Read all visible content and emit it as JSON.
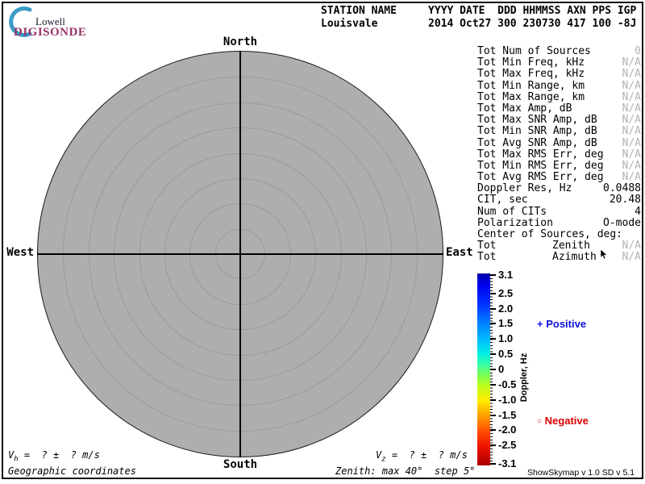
{
  "branding": {
    "line1": "Lowell",
    "line2": "DIGISONDE"
  },
  "header": {
    "columns_line": "STATION NAME     YYYY DATE  DDD HHMMSS AXN PPS IGP",
    "values_line": "Louisvale        2014 Oct27 300 230730 417 100 -8J",
    "station_name": "Louisvale",
    "year": "2014",
    "date": "Oct27",
    "ddd": "300",
    "hhmmss": "230730",
    "axn": "417",
    "pps": "100",
    "igp": "-8J"
  },
  "compass": {
    "north": "North",
    "south": "South",
    "east": "East",
    "west": "West"
  },
  "skymap": {
    "zenith_max_deg": 40,
    "zenith_step_deg": 5,
    "fill_color": "#aeaeae"
  },
  "stats": {
    "rows": [
      {
        "label": "Tot Num of Sources",
        "value": "0",
        "muted": true
      },
      {
        "label": "Tot Min Freq, kHz",
        "value": "N/A",
        "muted": true
      },
      {
        "label": "Tot Max Freq, kHz",
        "value": "N/A",
        "muted": true
      },
      {
        "label": "Tot Min Range, km",
        "value": "N/A",
        "muted": true
      },
      {
        "label": "Tot Max Range, km",
        "value": "N/A",
        "muted": true
      },
      {
        "label": "Tot Max Amp, dB",
        "value": "N/A",
        "muted": true
      },
      {
        "label": "Tot Max SNR Amp, dB",
        "value": "N/A",
        "muted": true
      },
      {
        "label": "Tot Min SNR Amp, dB",
        "value": "N/A",
        "muted": true
      },
      {
        "label": "Tot Avg SNR Amp, dB",
        "value": "N/A",
        "muted": true
      },
      {
        "label": "Tot Max RMS Err, deg",
        "value": "N/A",
        "muted": true
      },
      {
        "label": "Tot Min RMS Err, deg",
        "value": "N/A",
        "muted": true
      },
      {
        "label": "Tot Avg RMS Err, deg",
        "value": "N/A",
        "muted": true
      },
      {
        "label": "Doppler Res, Hz",
        "value": "0.0488",
        "muted": false
      },
      {
        "label": "CIT, sec",
        "value": "20.48",
        "muted": false
      },
      {
        "label": "Num of CITs",
        "value": "4",
        "muted": false
      },
      {
        "label": "Polarization",
        "value": "O-mode",
        "muted": false
      },
      {
        "label": "Center of Sources, deg:",
        "value": "",
        "muted": false
      },
      {
        "label": "Tot",
        "mid": "Zenith",
        "value": "N/A",
        "muted": true
      },
      {
        "label": "Tot",
        "mid": "Azimuth",
        "value": "N/A",
        "muted": true
      }
    ]
  },
  "colorbar": {
    "title": "Doppler, Hz",
    "max": 3.1,
    "min": -3.1,
    "ticks": [
      {
        "v": 3.1,
        "label": "3.1"
      },
      {
        "v": 2.5,
        "label": "2.5"
      },
      {
        "v": 2.0,
        "label": "2.0"
      },
      {
        "v": 1.5,
        "label": "1.5"
      },
      {
        "v": 1.0,
        "label": "1.0"
      },
      {
        "v": 0.5,
        "label": "0.5"
      },
      {
        "v": 0.0,
        "label": "0"
      },
      {
        "v": -0.5,
        "label": "-0.5"
      },
      {
        "v": -1.0,
        "label": "-1.0"
      },
      {
        "v": -1.5,
        "label": "-1.5"
      },
      {
        "v": -2.0,
        "label": "-2.0"
      },
      {
        "v": -2.5,
        "label": "-2.5"
      },
      {
        "v": -3.1,
        "label": "-3.1"
      }
    ],
    "positive": {
      "marker": "+",
      "label": "Positive",
      "color": "#0f0fdd"
    },
    "negative": {
      "marker": "○",
      "label": "Negative",
      "color": "#dd0000"
    }
  },
  "footer": {
    "vh_base": "V",
    "vh_sub": "h",
    "vh_rest": " =  ? ±  ? m/s",
    "vz_base": "V",
    "vz_sub": "z",
    "vz_rest": " =  ? ±  ? m/s",
    "coordinates": "Geographic coordinates",
    "zenith_info": "Zenith: max 40°  step 5°",
    "version": "ShowSkymap v 1.0  SD v 5.1"
  }
}
